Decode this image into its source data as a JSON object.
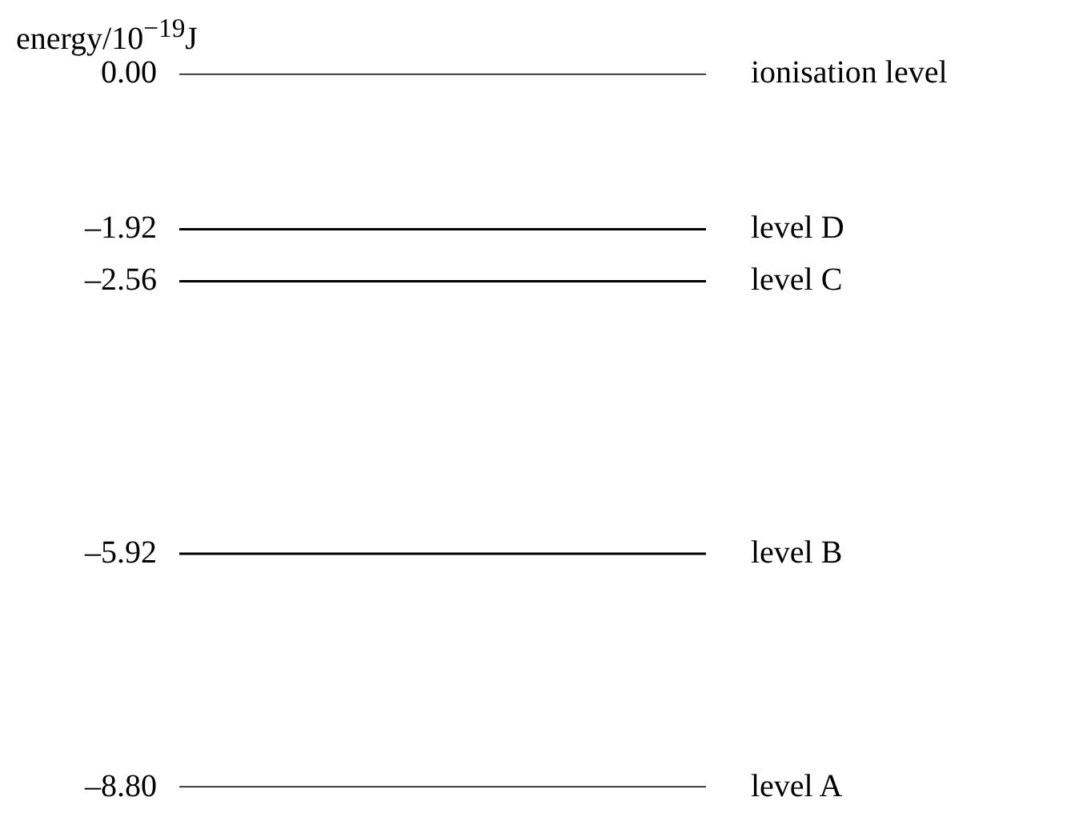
{
  "chart_data": {
    "type": "other",
    "ylabel": "energy/10$^{−19}$J",
    "color": "#000000",
    "categories": [
      "ionisation level",
      "level D",
      "level C",
      "level B",
      "level A"
    ],
    "values": [
      0,
      -1.92,
      -2.56,
      -5.92,
      -8.8
    ],
    "value_labels": [
      "0.00",
      "–1.92",
      "–2.56",
      "–5.92",
      "–8.80"
    ]
  }
}
